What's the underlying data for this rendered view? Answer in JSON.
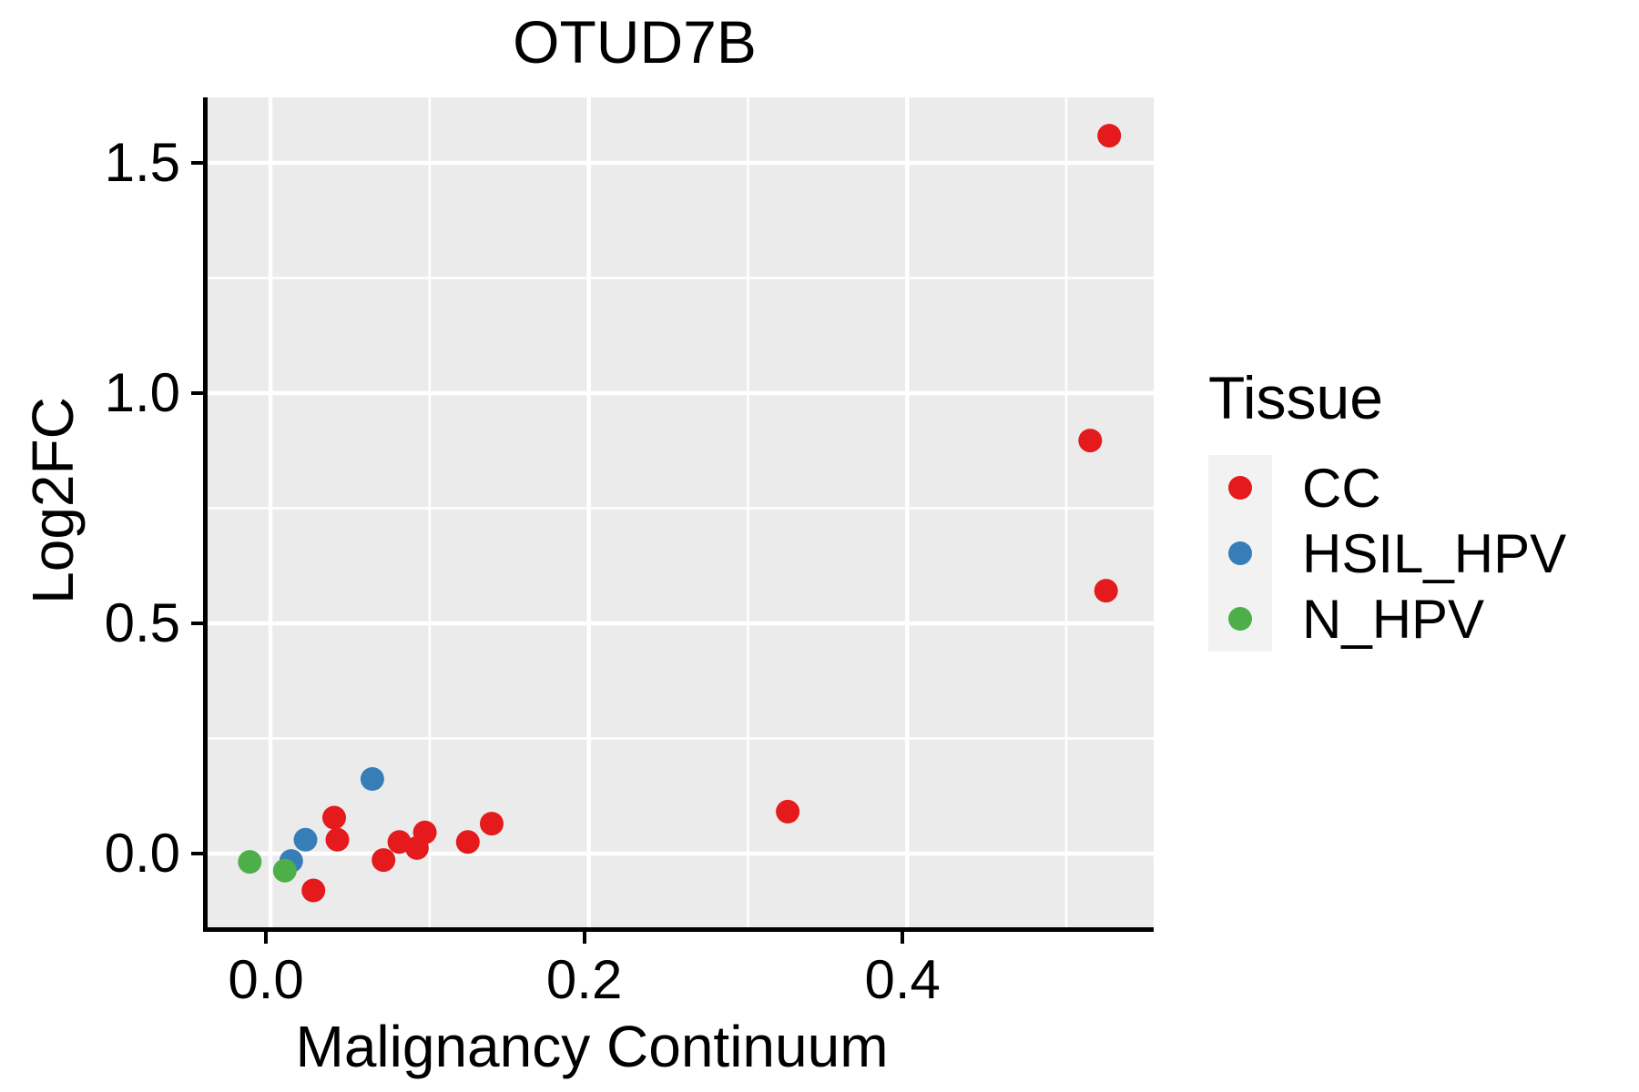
{
  "chart_data": {
    "type": "scatter",
    "title": "OTUD7B",
    "xlabel": "Malignancy Continuum",
    "ylabel": "Log2FC",
    "legend_title": "Tissue",
    "legend_position": "right",
    "grid": "on",
    "panel_background": "#EBEBEB",
    "grid_color": "#FFFFFF",
    "legend_key_background": "#F2F2F2",
    "axis_color": "#000000",
    "xlim": [
      -0.0395,
      0.5549
    ],
    "ylim": [
      -0.1601,
      1.6423
    ],
    "x_ticks": [
      0.0,
      0.2,
      0.4
    ],
    "x_tick_labels": [
      "0.0",
      "0.2",
      "0.4"
    ],
    "x_minor_ticks": [
      0.1,
      0.3,
      0.5
    ],
    "y_ticks": [
      0.0,
      0.5,
      1.0,
      1.5
    ],
    "y_tick_labels": [
      "0.0",
      "0.5",
      "1.0",
      "1.5"
    ],
    "y_minor_ticks": [
      0.25,
      0.75,
      1.25
    ],
    "series": [
      {
        "name": "CC",
        "color": "#E41A1C",
        "points": [
          [
            0.04,
            0.078
          ],
          [
            0.042,
            0.03
          ],
          [
            0.027,
            -0.08
          ],
          [
            0.071,
            -0.014
          ],
          [
            0.081,
            0.025
          ],
          [
            0.092,
            0.012
          ],
          [
            0.097,
            0.046
          ],
          [
            0.124,
            0.025
          ],
          [
            0.139,
            0.065
          ],
          [
            0.325,
            0.091
          ],
          [
            0.515,
            0.897
          ],
          [
            0.525,
            0.571
          ],
          [
            0.527,
            1.559
          ]
        ]
      },
      {
        "name": "HSIL_HPV",
        "color": "#377EB8",
        "points": [
          [
            0.013,
            -0.016
          ],
          [
            0.022,
            0.03
          ],
          [
            0.064,
            0.162
          ]
        ]
      },
      {
        "name": "N_HPV",
        "color": "#4DAF4A",
        "points": [
          [
            -0.013,
            -0.018
          ],
          [
            0.009,
            -0.037
          ]
        ]
      }
    ]
  }
}
